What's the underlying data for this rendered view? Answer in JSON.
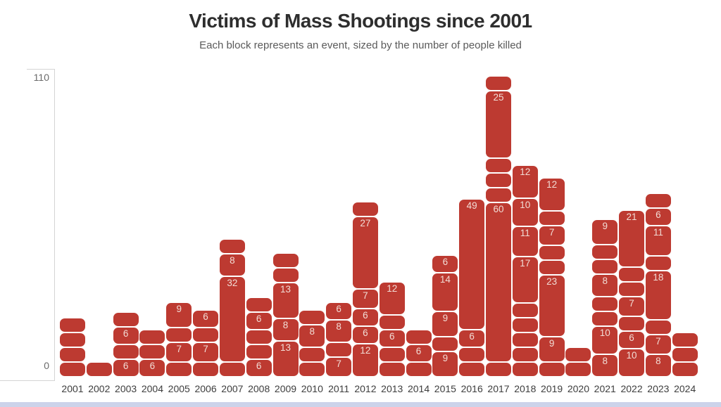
{
  "colors": {
    "block": "#bd3a31",
    "block_label": "#f2dcd5",
    "title": "#2e2e2e",
    "subtitle": "#5a5a5a",
    "axis_line": "#d4d4d4",
    "year_label": "#3d3d3d",
    "bottom_strip": "#ccd3ea",
    "background": "#ffffff"
  },
  "chart_data": {
    "type": "bar",
    "stacked": true,
    "title": "Victims of Mass Shootings since 2001",
    "subtitle": "Each block represents an event, sized by the number of people killed",
    "ylim": [
      0,
      110
    ],
    "y_axis_labels": {
      "max": "110",
      "min": "0"
    },
    "grid": false,
    "legend": false,
    "label_min_value": 6,
    "unlabeled_block_value": 5,
    "categories": [
      "2001",
      "2002",
      "2003",
      "2004",
      "2005",
      "2006",
      "2007",
      "2008",
      "2009",
      "2010",
      "2011",
      "2012",
      "2013",
      "2014",
      "2015",
      "2016",
      "2017",
      "2018",
      "2019",
      "2020",
      "2021",
      "2022",
      "2023",
      "2024"
    ],
    "columns": [
      {
        "year": "2001",
        "blocks_bottom_to_top": [
          5,
          5,
          5,
          5
        ]
      },
      {
        "year": "2002",
        "blocks_bottom_to_top": [
          5
        ]
      },
      {
        "year": "2003",
        "blocks_bottom_to_top": [
          6,
          5,
          6,
          5
        ]
      },
      {
        "year": "2004",
        "blocks_bottom_to_top": [
          6,
          5,
          5
        ]
      },
      {
        "year": "2005",
        "blocks_bottom_to_top": [
          5,
          7,
          5,
          9
        ]
      },
      {
        "year": "2006",
        "blocks_bottom_to_top": [
          5,
          7,
          5,
          6
        ]
      },
      {
        "year": "2007",
        "blocks_bottom_to_top": [
          5,
          32,
          8,
          5
        ]
      },
      {
        "year": "2008",
        "blocks_bottom_to_top": [
          6,
          5,
          5,
          6,
          5
        ]
      },
      {
        "year": "2009",
        "blocks_bottom_to_top": [
          13,
          8,
          13,
          5,
          5
        ]
      },
      {
        "year": "2010",
        "blocks_bottom_to_top": [
          5,
          5,
          8,
          5
        ]
      },
      {
        "year": "2011",
        "blocks_bottom_to_top": [
          7,
          5,
          8,
          6
        ]
      },
      {
        "year": "2012",
        "blocks_bottom_to_top": [
          12,
          6,
          6,
          7,
          27,
          5
        ]
      },
      {
        "year": "2013",
        "blocks_bottom_to_top": [
          5,
          5,
          6,
          5,
          12
        ]
      },
      {
        "year": "2014",
        "blocks_bottom_to_top": [
          5,
          6,
          5
        ]
      },
      {
        "year": "2015",
        "blocks_bottom_to_top": [
          9,
          5,
          9,
          14,
          6
        ]
      },
      {
        "year": "2016",
        "blocks_bottom_to_top": [
          5,
          5,
          6,
          49
        ]
      },
      {
        "year": "2017",
        "blocks_bottom_to_top": [
          5,
          60,
          5,
          5,
          5,
          25,
          5
        ]
      },
      {
        "year": "2018",
        "blocks_bottom_to_top": [
          5,
          5,
          5,
          5,
          5,
          17,
          11,
          10,
          12
        ]
      },
      {
        "year": "2019",
        "blocks_bottom_to_top": [
          5,
          9,
          23,
          5,
          5,
          7,
          5,
          12
        ]
      },
      {
        "year": "2020",
        "blocks_bottom_to_top": [
          5,
          5
        ]
      },
      {
        "year": "2021",
        "blocks_bottom_to_top": [
          8,
          10,
          5,
          5,
          8,
          5,
          5,
          9
        ]
      },
      {
        "year": "2022",
        "blocks_bottom_to_top": [
          10,
          6,
          5,
          7,
          5,
          5,
          21
        ]
      },
      {
        "year": "2023",
        "blocks_bottom_to_top": [
          8,
          7,
          5,
          18,
          5,
          11,
          6,
          5
        ]
      },
      {
        "year": "2024",
        "blocks_bottom_to_top": [
          5,
          5,
          5
        ]
      }
    ]
  }
}
